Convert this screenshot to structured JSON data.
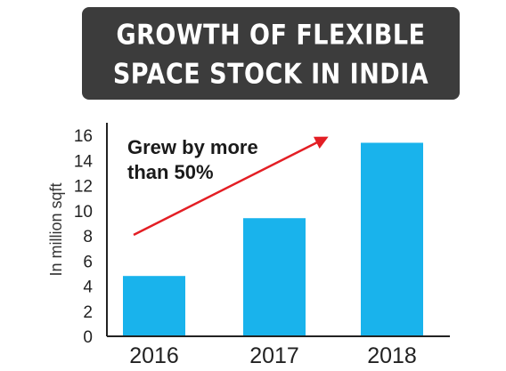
{
  "chart_data": {
    "type": "bar",
    "title": "GROWTH OF FLEXIBLE SPACE STOCK IN INDIA",
    "title_lines": [
      "GROWTH OF FLEXIBLE",
      "SPACE STOCK IN INDIA"
    ],
    "categories": [
      "2016",
      "2017",
      "2018"
    ],
    "values": [
      4.8,
      9.4,
      15.4
    ],
    "xlabel": "",
    "ylabel": "In million sqft",
    "ylim": [
      0,
      16
    ],
    "yticks": [
      "0",
      "2",
      "4",
      "6",
      "8",
      "10",
      "12",
      "14",
      "16"
    ],
    "annotation_lines": [
      "Grew by more",
      "than 50%"
    ],
    "grid": false,
    "colors": {
      "bar": "#19b3ec",
      "arrow": "#e31e24",
      "axis": "#222222",
      "title_bg": "#3c3c3c"
    }
  }
}
